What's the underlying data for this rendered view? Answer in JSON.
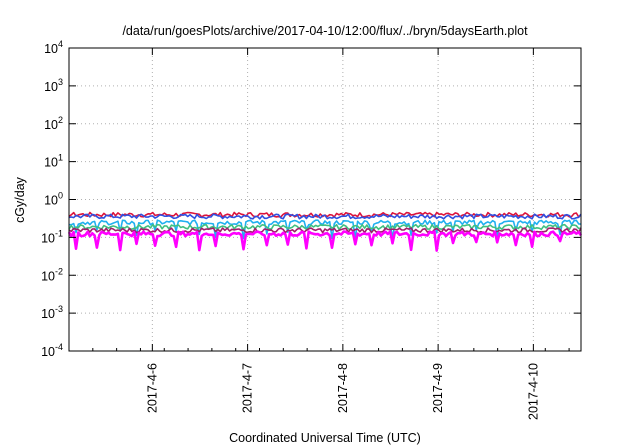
{
  "chart_data": {
    "type": "line",
    "title": "/data/run/goesPlots/archive/2017-04-10/12:00/flux/../bryn/5daysEarth.plot",
    "xlabel": "Coordinated Universal Time (UTC)",
    "ylabel": "cGy/day",
    "yscale": "log",
    "ylim": [
      0.0001,
      10000
    ],
    "y_ticks": [
      {
        "value": 0.0001,
        "base": "10",
        "exp": "-4"
      },
      {
        "value": 0.001,
        "base": "10",
        "exp": "-3"
      },
      {
        "value": 0.01,
        "base": "10",
        "exp": "-2"
      },
      {
        "value": 0.1,
        "base": "10",
        "exp": "-1"
      },
      {
        "value": 1,
        "base": "10",
        "exp": "0"
      },
      {
        "value": 10,
        "base": "10",
        "exp": "1"
      },
      {
        "value": 100,
        "base": "10",
        "exp": "2"
      },
      {
        "value": 1000,
        "base": "10",
        "exp": "3"
      },
      {
        "value": 10000,
        "base": "10",
        "exp": "4"
      }
    ],
    "xlim": [
      "2017-04-05 03:00",
      "2017-04-10 12:00"
    ],
    "x_ticks": [
      "2017-4-6",
      "2017-4-7",
      "2017-4-8",
      "2017-4-9",
      "2017-4-10"
    ],
    "grid": true,
    "series": [
      {
        "color": "#dc143c",
        "base": 0.4,
        "dips": false
      },
      {
        "color": "#3050e0",
        "base": 0.36,
        "dips": false
      },
      {
        "color": "#20b0f0",
        "base": 0.25,
        "dips": true
      },
      {
        "color": "#40c080",
        "base": 0.19,
        "dips": false
      },
      {
        "color": "#a0206a",
        "base": 0.155,
        "dips": false
      },
      {
        "color": "#ff00ff",
        "base": 0.125,
        "dips": true
      }
    ]
  }
}
